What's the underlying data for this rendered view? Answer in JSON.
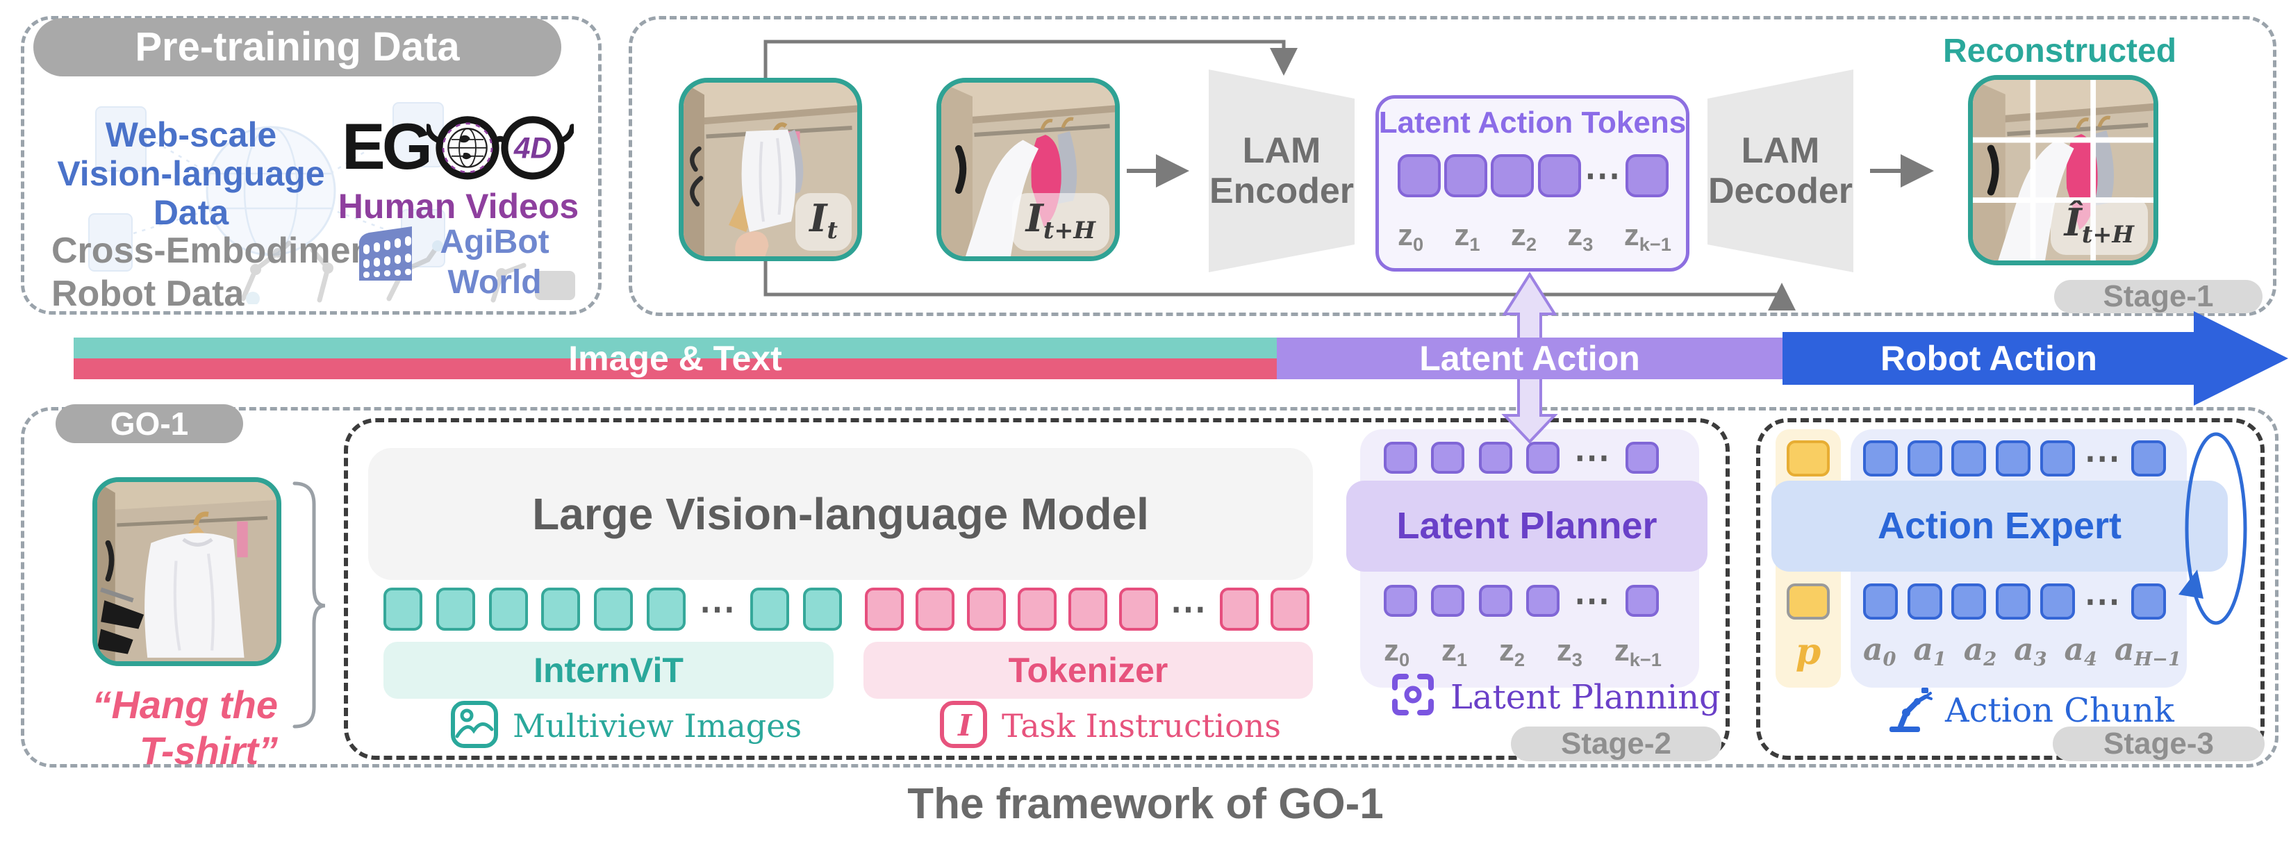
{
  "ellipsis": "⋯",
  "caption": "The framework of GO-1",
  "pretraining": {
    "title": "Pre-training Data",
    "web_scale_lines": [
      "Web-scale",
      "Vision-language",
      "Data"
    ],
    "ego_prefix": "EG",
    "ego_4d": "4D",
    "human_videos": "Human Videos",
    "cross_embodiment_lines": [
      "Cross-Embodiment",
      "Robot Data"
    ],
    "agibot_lines": [
      "AgiBot",
      "World"
    ]
  },
  "stage1": {
    "label": "Stage-1",
    "encoder_lines": [
      "LAM",
      "Encoder"
    ],
    "decoder_lines": [
      "LAM",
      "Decoder"
    ],
    "tokens_title": "Latent Action Tokens",
    "token_row": {
      "before": 4,
      "after": 1
    },
    "z_labels": [
      {
        "b": "z",
        "s": "0"
      },
      {
        "b": "z",
        "s": "1"
      },
      {
        "b": "z",
        "s": "2"
      },
      {
        "b": "z",
        "s": "3"
      },
      {
        "b": "z",
        "s": "k−1"
      }
    ],
    "input_label": {
      "b": "I",
      "s": "t"
    },
    "future_label": {
      "b": "I",
      "s": "t+H"
    },
    "recon_heading": "Reconstructed",
    "recon_label": {
      "b": "Î",
      "s": "t+H"
    }
  },
  "bar": {
    "image_text": "Image & Text",
    "latent_action": "Latent Action",
    "robot_action": "Robot Action"
  },
  "go1": {
    "label": "GO-1",
    "quote_lines": [
      "“Hang the",
      "T-shirt”"
    ],
    "vlm_title": "Large Vision-language Model",
    "internvit": "InternViT",
    "tokenizer": "Tokenizer",
    "multiview": "Multiview Images",
    "task_instructions": "Task Instructions",
    "task_icon_glyph": "I",
    "teal_row": {
      "before": 6,
      "after": 2
    },
    "pink_row": {
      "before": 6,
      "after": 2
    }
  },
  "stage2": {
    "label": "Stage-2",
    "planner": "Latent Planner",
    "planning_caption": "Latent Planning",
    "top_row": {
      "before": 4,
      "after": 1
    },
    "bottom_row": {
      "before": 4,
      "after": 1
    },
    "z_labels": [
      {
        "b": "z",
        "s": "0"
      },
      {
        "b": "z",
        "s": "1"
      },
      {
        "b": "z",
        "s": "2"
      },
      {
        "b": "z",
        "s": "3"
      },
      {
        "b": "z",
        "s": "k−1"
      }
    ]
  },
  "stage3": {
    "label": "Stage-3",
    "expert": "Action Expert",
    "chunk_caption": "Action Chunk",
    "p_label": "p",
    "top_row": {
      "before": 5,
      "after": 1
    },
    "bottom_row": {
      "before": 5,
      "after": 1
    },
    "a_labels": [
      {
        "b": "a",
        "s": "0"
      },
      {
        "b": "a",
        "s": "1"
      },
      {
        "b": "a",
        "s": "2"
      },
      {
        "b": "a",
        "s": "3"
      },
      {
        "b": "a",
        "s": "4"
      },
      {
        "b": "a",
        "s": "H−1"
      }
    ]
  },
  "colors": {
    "teal": "#2aa89b",
    "pink": "#e85d7d",
    "purple": "#8b6ce8",
    "blue": "#2e62dd",
    "yellow": "#f2b73f",
    "gray_pill": "#a9a9a9"
  }
}
